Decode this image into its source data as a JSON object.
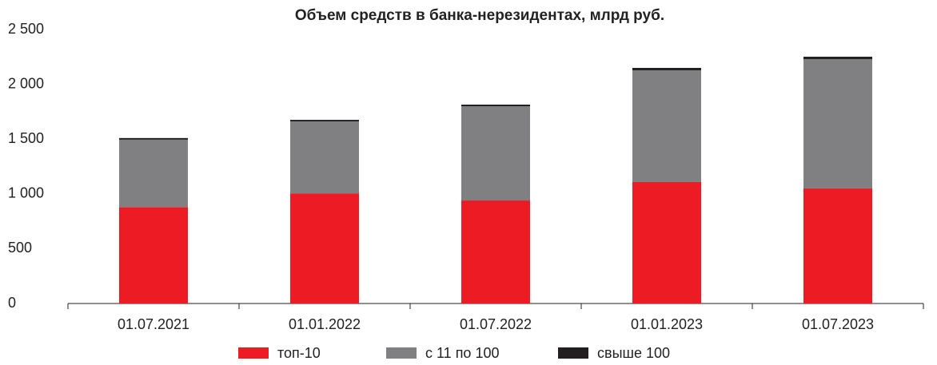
{
  "chart_data": {
    "type": "stacked_bar",
    "title": "Объем средств в банка-нерезидентах, млрд руб.",
    "categories": [
      "01.07.2021",
      "01.01.2022",
      "01.07.2022",
      "01.01.2023",
      "01.07.2023"
    ],
    "series": [
      {
        "name": "топ-10",
        "color": "#ed1c24",
        "values": [
          880,
          1005,
          940,
          1108,
          1050
        ]
      },
      {
        "name": "с 11 по 100",
        "color": "#808083",
        "values": [
          615,
          657,
          860,
          1020,
          1180
        ]
      },
      {
        "name": "свыше 100",
        "color": "#231f20",
        "values": [
          15,
          14,
          15,
          22,
          22
        ]
      }
    ],
    "ylim": [
      0,
      2500
    ],
    "yticks": [
      0,
      500,
      {
        "value": 1000,
        "label": "1 000"
      },
      {
        "value": 1500,
        "label": "1 500"
      },
      {
        "value": 2000,
        "label": "2 000"
      },
      {
        "value": 2500,
        "label": "2 500"
      }
    ],
    "grid": false,
    "legend": "bottom"
  }
}
